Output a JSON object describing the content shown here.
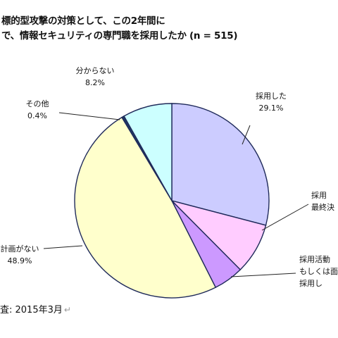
{
  "title_lines": [
    "標的型攻撃の対策として、この2年間に",
    "で、情報セキュリティの専門職を採用したか (n = 515)"
  ],
  "footer": {
    "text": "査: 2015年3月",
    "return_mark": "↵"
  },
  "chart_data": {
    "type": "pie",
    "start_angle_deg": 0,
    "direction": "clockwise",
    "slices": [
      {
        "label_lines": [
          "採用した",
          "29.1%"
        ],
        "value": 29.1,
        "color": "#ccccff"
      },
      {
        "label_lines": [
          "採用",
          "最終決"
        ],
        "value": 8.5,
        "color": "#ffccff"
      },
      {
        "label_lines": [
          "採用活動",
          "もしくは面",
          "採用し"
        ],
        "value": 5.0,
        "color": "#cc99ff"
      },
      {
        "label_lines": [
          "計画がない",
          "48.9%"
        ],
        "value": 48.9,
        "color": "#ffffcc"
      },
      {
        "label_lines": [
          "その他",
          "0.4%"
        ],
        "value": 0.4,
        "color": "#1f3864"
      },
      {
        "label_lines": [
          "分からない",
          "8.2%"
        ],
        "value": 8.2,
        "color": "#ccffff"
      }
    ]
  }
}
